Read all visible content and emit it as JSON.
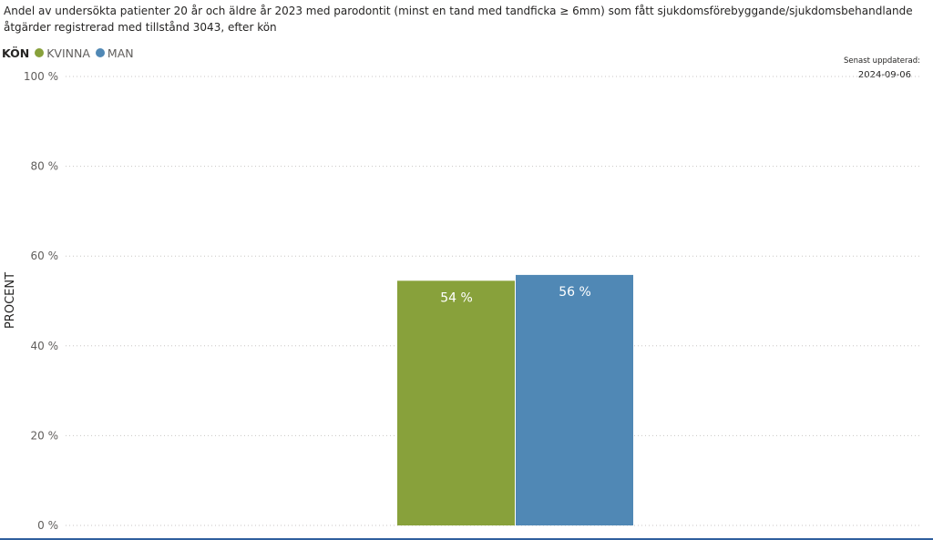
{
  "title": "Andel av undersökta patienter 20 år och äldre år 2023 med parodontit (minst en tand med tandficka ≥ 6mm) som fått sjukdomsförebyggande/sjukdomsbehandlande åtgärder registrerad med tillstånd 3043, efter kön",
  "legend": {
    "title": "KÖN",
    "items": [
      {
        "label": "KVINNA",
        "color": "#88a13b"
      },
      {
        "label": "MAN",
        "color": "#5088b5"
      }
    ]
  },
  "updated": {
    "label": "Senast uppdaterad:",
    "date": "2024-09-06"
  },
  "chart_data": {
    "type": "bar",
    "title": "Andel av undersökta patienter 20 år och äldre år 2023 med parodontit (minst en tand med tandficka ≥ 6mm) som fått sjukdomsförebyggande/sjukdomsbehandlande åtgärder registrerad med tillstånd 3043, efter kön",
    "xlabel": "",
    "ylabel": "PROCENT",
    "ylim": [
      0,
      100
    ],
    "yticks": [
      0,
      20,
      40,
      60,
      80,
      100
    ],
    "ytick_labels": [
      "0 %",
      "20 %",
      "40 %",
      "60 %",
      "80 %",
      "100 %"
    ],
    "grid": true,
    "legend_position": "top-left",
    "categories": [
      ""
    ],
    "series": [
      {
        "name": "KVINNA",
        "values": [
          54.5
        ],
        "label": "54 %",
        "color": "#88a13b"
      },
      {
        "name": "MAN",
        "values": [
          55.8
        ],
        "label": "56 %",
        "color": "#5088b5"
      }
    ]
  }
}
